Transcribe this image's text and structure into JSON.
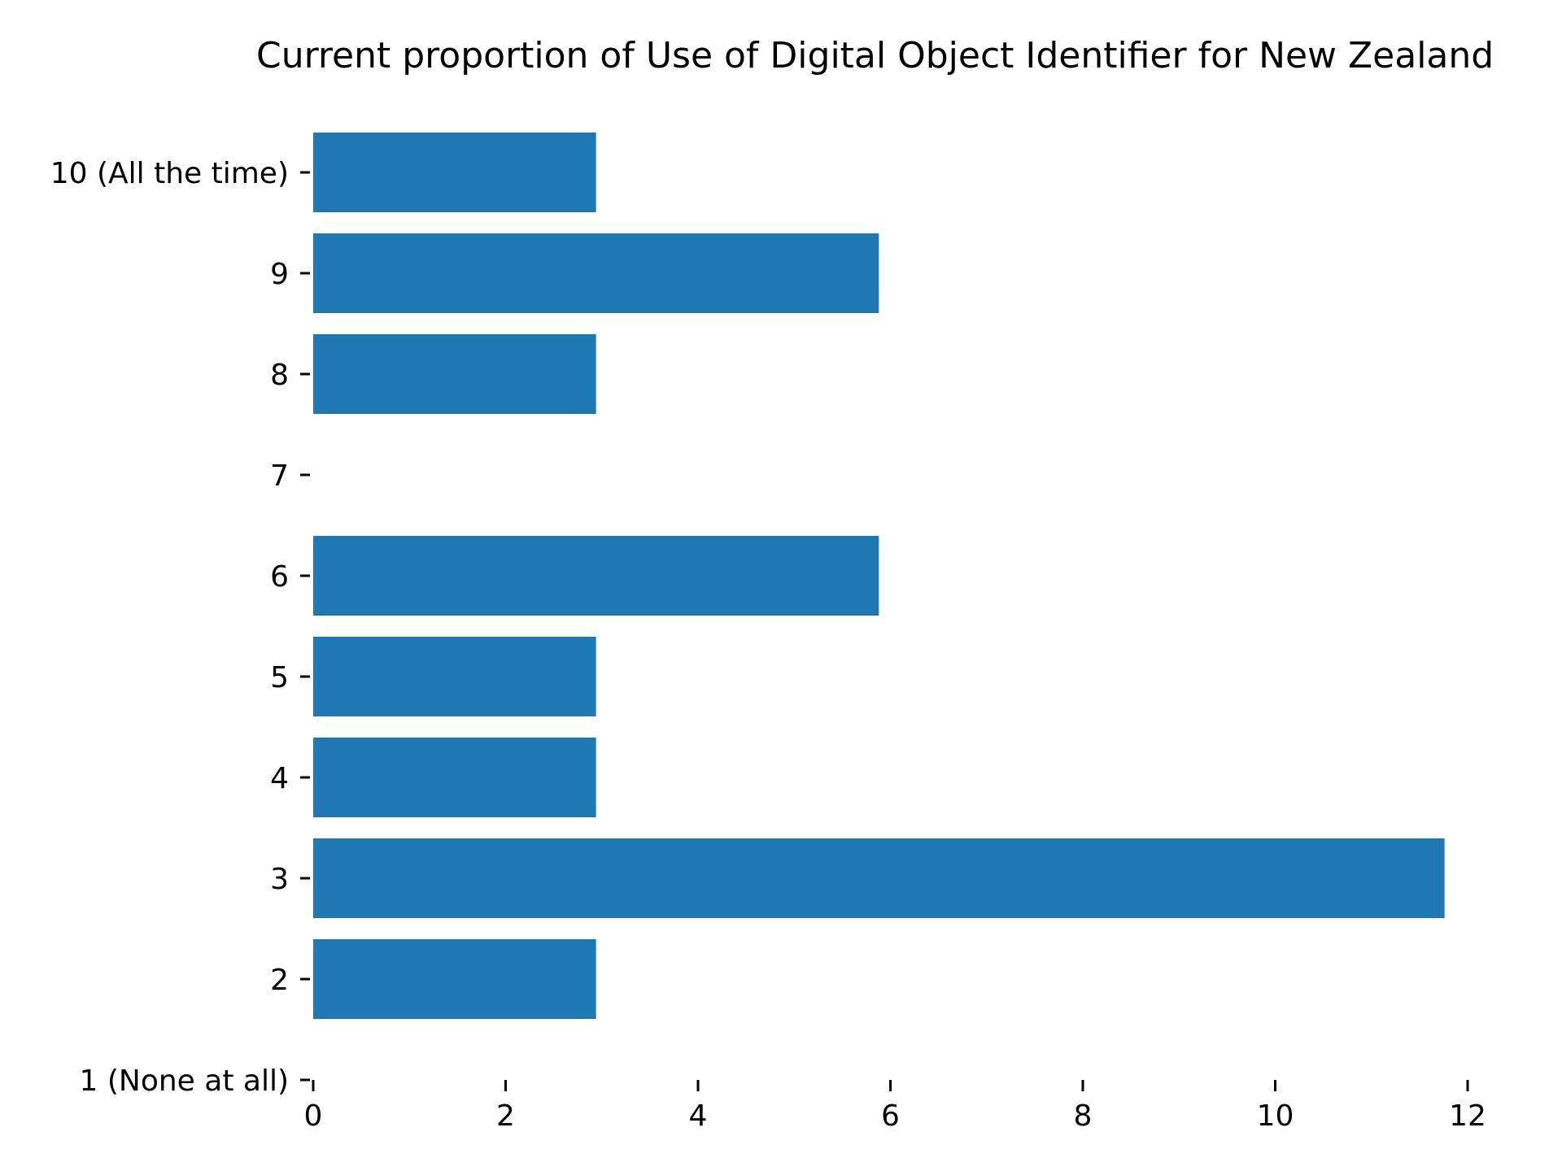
{
  "chart_data": {
    "type": "bar",
    "orientation": "horizontal",
    "title": "Current proportion of Use of Digital Object Identifier for New Zealand",
    "xlabel": "",
    "ylabel": "",
    "categories": [
      "1 (None at all)",
      "2",
      "3",
      "4",
      "5",
      "6",
      "7",
      "8",
      "9",
      "10 (All the time)"
    ],
    "values": [
      0,
      2.94,
      11.76,
      2.94,
      2.94,
      5.88,
      0,
      2.94,
      5.88,
      2.94
    ],
    "xlim": [
      0,
      12
    ],
    "xticks": [
      "0",
      "2",
      "4",
      "6",
      "8",
      "10",
      "12"
    ],
    "grid": false,
    "legend": "none",
    "bar_color": "#1f77b4"
  }
}
